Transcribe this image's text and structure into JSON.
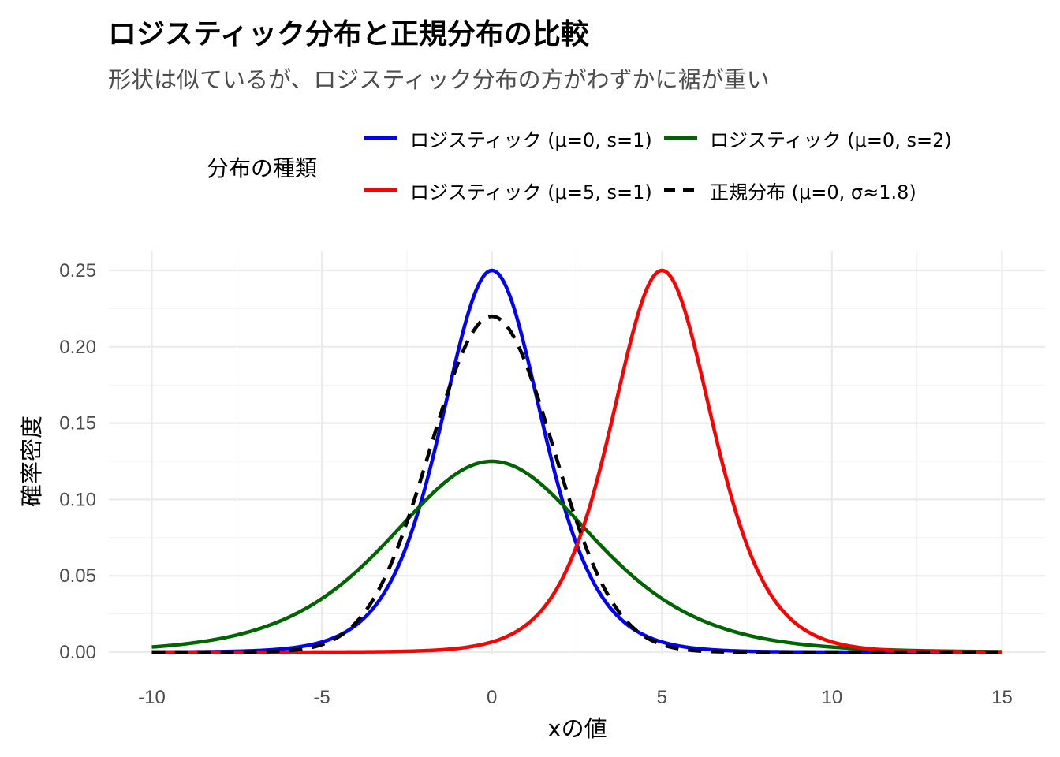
{
  "chart_data": {
    "type": "line",
    "title": "ロジスティック分布と正規分布の比較",
    "subtitle": "形状は似ているが、ロジスティック分布の方がわずかに裾が重い",
    "xlabel": "xの値",
    "ylabel": "確率密度",
    "xlim": [
      -10,
      15
    ],
    "ylim": [
      0,
      0.25
    ],
    "x_ticks": [
      -10,
      -5,
      0,
      5,
      10,
      15
    ],
    "x_tick_labels": [
      "-10",
      "-5",
      "0",
      "5",
      "10",
      "15"
    ],
    "y_ticks": [
      0,
      0.05,
      0.1,
      0.15,
      0.2,
      0.25
    ],
    "y_tick_labels": [
      "0.00",
      "0.05",
      "0.10",
      "0.15",
      "0.20",
      "0.25"
    ],
    "grid": true,
    "legend_title": "分布の種類",
    "legend_position": "top",
    "series": [
      {
        "name": "ロジスティック (μ=0, s=1)",
        "dist": "logistic",
        "mu": 0,
        "s": 1,
        "color": "#0000ff",
        "linetype": "solid"
      },
      {
        "name": "ロジスティック (μ=0, s=2)",
        "dist": "logistic",
        "mu": 0,
        "s": 2,
        "color": "#006400",
        "linetype": "solid"
      },
      {
        "name": "ロジスティック (μ=5, s=1)",
        "dist": "logistic",
        "mu": 5,
        "s": 1,
        "color": "#ff0000",
        "linetype": "solid"
      },
      {
        "name": "正規分布 (μ=0, σ≈1.8)",
        "dist": "normal",
        "mu": 0,
        "sigma": 1.8138,
        "color": "#000000",
        "linetype": "dashed"
      }
    ]
  }
}
